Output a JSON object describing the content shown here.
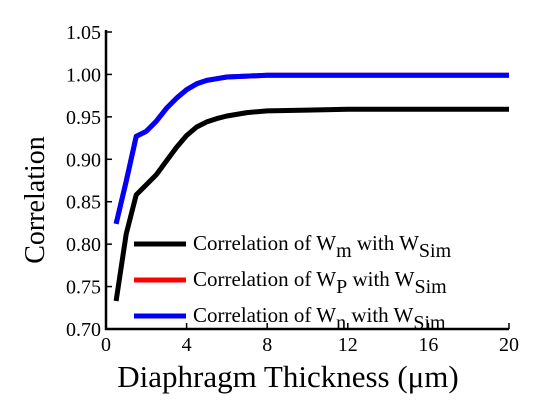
{
  "chart_data": {
    "type": "line",
    "xlabel": "Diaphragm Thickness (μm)",
    "ylabel": "Correlation",
    "xlim": [
      0,
      20
    ],
    "ylim": [
      0.7,
      1.05
    ],
    "xticks": [
      "0",
      "4",
      "8",
      "12",
      "16",
      "20"
    ],
    "yticks": [
      "0.70",
      "0.75",
      "0.80",
      "0.85",
      "0.90",
      "0.95",
      "1.00",
      "1.05"
    ],
    "grid": false,
    "legend_position": "bottom-right",
    "x": [
      0.5,
      1.0,
      1.5,
      2.0,
      2.5,
      3.0,
      3.5,
      4.0,
      4.5,
      5.0,
      5.5,
      6.0,
      7.0,
      8.0,
      10.0,
      12.0,
      14.0,
      16.0,
      18.0,
      20.0
    ],
    "series": [
      {
        "name_parts": [
          "Correlation of W",
          "m",
          " with W",
          "Sim"
        ],
        "color": "#000000",
        "values": [
          0.733,
          0.812,
          0.858,
          0.87,
          0.882,
          0.898,
          0.914,
          0.928,
          0.938,
          0.944,
          0.948,
          0.951,
          0.955,
          0.957,
          0.958,
          0.959,
          0.959,
          0.959,
          0.959,
          0.959
        ]
      },
      {
        "name_parts": [
          "Correlation of W",
          "P",
          " with W",
          "Sim"
        ],
        "color": "#ff0000",
        "values": [
          0.824,
          0.874,
          0.927,
          0.933,
          0.945,
          0.96,
          0.972,
          0.982,
          0.989,
          0.993,
          0.995,
          0.997,
          0.998,
          0.999,
          0.999,
          0.999,
          0.999,
          0.999,
          0.999,
          0.999
        ]
      },
      {
        "name_parts": [
          "Correlation of W",
          "n",
          " with W",
          "Sim"
        ],
        "color": "#0000ff",
        "values": [
          0.824,
          0.874,
          0.927,
          0.933,
          0.945,
          0.96,
          0.972,
          0.982,
          0.989,
          0.993,
          0.995,
          0.997,
          0.998,
          0.999,
          0.999,
          0.999,
          0.999,
          0.999,
          0.999,
          0.999
        ]
      }
    ]
  }
}
